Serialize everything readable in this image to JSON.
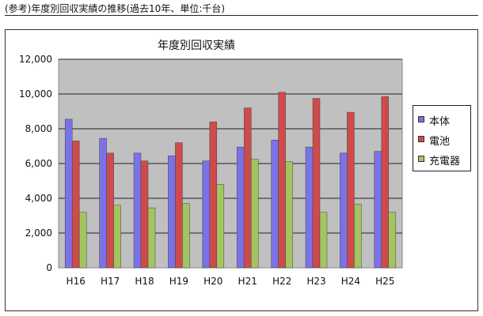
{
  "caption": "(参考)年度別回収実績の推移(過去10年、単位:千台)",
  "chart_data": {
    "type": "bar",
    "title": "年度別回収実績",
    "categories": [
      "H16",
      "H17",
      "H18",
      "H19",
      "H20",
      "H21",
      "H22",
      "H23",
      "H24",
      "H25"
    ],
    "series": [
      {
        "name": "本体",
        "color": "#7a72e6",
        "values": [
          8550,
          7450,
          6600,
          6450,
          6150,
          6950,
          7350,
          6950,
          6600,
          6700
        ]
      },
      {
        "name": "電池",
        "color": "#cf4b4b",
        "values": [
          7300,
          6600,
          6150,
          7200,
          8400,
          9200,
          10100,
          9750,
          8950,
          9850
        ]
      },
      {
        "name": "充電器",
        "color": "#a3c55f",
        "values": [
          3200,
          3600,
          3450,
          3700,
          4800,
          6250,
          6100,
          3200,
          3650,
          3200
        ]
      }
    ],
    "ylim": [
      0,
      12000
    ],
    "yticks": [
      "0",
      "2,000",
      "4,000",
      "6,000",
      "8,000",
      "10,000",
      "12,000"
    ],
    "grid": true,
    "legend_position": "right"
  }
}
